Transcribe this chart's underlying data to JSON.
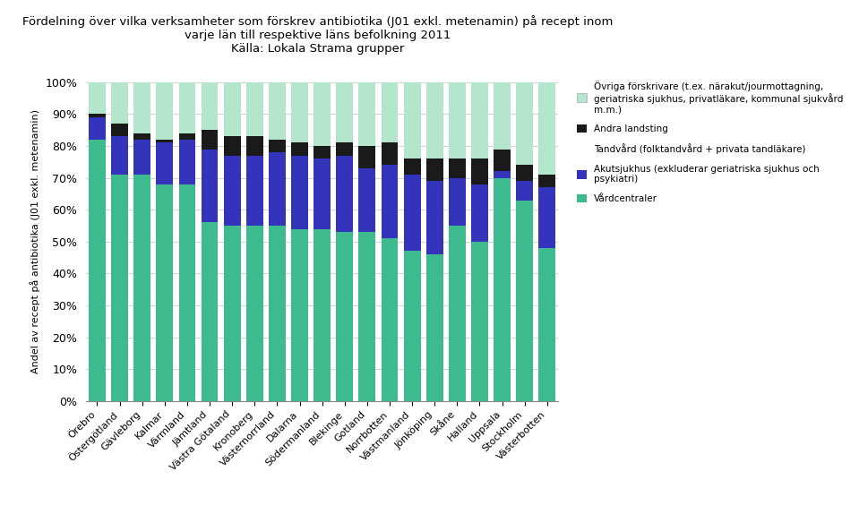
{
  "title_line1": "Fördelning över vilka verksamheter som förskrev antibiotika (J01 exkl. metenamin) på recept inom",
  "title_line2": "varje län till respektive läns befolkning 2011",
  "title_line3": "Källa: Lokala Strama grupper",
  "ylabel": "Andel av recept på antibiotika (J01 exkl. metenamin)",
  "categories": [
    "Örebro",
    "Östergötland",
    "Gävleborg",
    "Kalmar",
    "Värmland",
    "Jämtland",
    "Västra Götaland",
    "Kronoberg",
    "Västernorrland",
    "Dalarna",
    "Södermanland",
    "Blekinge",
    "Gotland",
    "Norrbotten",
    "Västmanland",
    "Jönköping",
    "Skåne",
    "Halland",
    "Uppsala",
    "Stockholm",
    "Västerbotten"
  ],
  "vardcentraler": [
    0.82,
    0.71,
    0.71,
    0.68,
    0.68,
    0.56,
    0.55,
    0.55,
    0.55,
    0.54,
    0.54,
    0.53,
    0.53,
    0.51,
    0.47,
    0.46,
    0.55,
    0.5,
    0.7,
    0.63,
    0.48
  ],
  "akutsjukhus": [
    0.07,
    0.12,
    0.11,
    0.13,
    0.14,
    0.23,
    0.22,
    0.22,
    0.23,
    0.23,
    0.22,
    0.24,
    0.2,
    0.23,
    0.24,
    0.23,
    0.15,
    0.18,
    0.02,
    0.06,
    0.19
  ],
  "tandvard": [
    0.0,
    0.0,
    0.0,
    0.0,
    0.0,
    0.0,
    0.0,
    0.0,
    0.0,
    0.0,
    0.0,
    0.0,
    0.0,
    0.0,
    0.0,
    0.0,
    0.0,
    0.0,
    0.0,
    0.0,
    0.0
  ],
  "andra": [
    0.01,
    0.04,
    0.02,
    0.01,
    0.02,
    0.06,
    0.06,
    0.06,
    0.04,
    0.04,
    0.04,
    0.04,
    0.07,
    0.07,
    0.05,
    0.07,
    0.06,
    0.08,
    0.07,
    0.05,
    0.04
  ],
  "ovriga": [
    0.1,
    0.13,
    0.16,
    0.18,
    0.16,
    0.15,
    0.17,
    0.17,
    0.18,
    0.19,
    0.2,
    0.19,
    0.2,
    0.19,
    0.24,
    0.24,
    0.24,
    0.24,
    0.21,
    0.26,
    0.29
  ],
  "color_vardcentraler": "#3dbb8f",
  "color_akutsjukhus": "#3333bb",
  "color_tandvard": "#ffffff",
  "color_andra": "#1a1a1a",
  "color_ovriga": "#b3e6cc",
  "legend_ovriga": "Övriga förskrivare (t.ex. närakut/jourmottagning,\ngeriatriska sjukhus, privatläkare, kommunal sjukvård\nm.m.)",
  "legend_andra": "Andra landsting",
  "legend_tandvard": "Tandvård (folktandvård + privata tandläkare)",
  "legend_akutsjukhus": "Akutsjukhus (exkluderar geriatriska sjukhus och\npsykiatri)",
  "legend_vardcentraler": "Vårdcentraler",
  "ylim": [
    0,
    1.0
  ],
  "yticks": [
    0.0,
    0.1,
    0.2,
    0.3,
    0.4,
    0.5,
    0.6,
    0.7,
    0.8,
    0.9,
    1.0
  ],
  "ytick_labels": [
    "0%",
    "10%",
    "20%",
    "30%",
    "40%",
    "50%",
    "60%",
    "70%",
    "80%",
    "90%",
    "100%"
  ]
}
